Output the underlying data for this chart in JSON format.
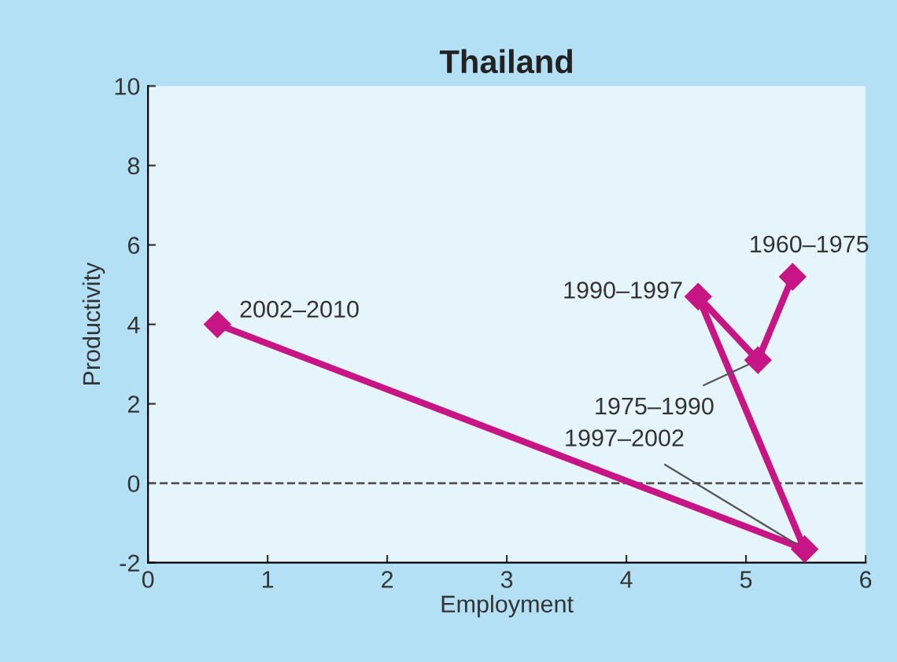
{
  "chart_data": {
    "type": "line",
    "title": "Thailand",
    "xlabel": "Employment",
    "ylabel": "Productivity",
    "series": [
      {
        "color": "#c71585",
        "x": [
          5.39,
          5.1,
          4.6,
          5.49,
          0.58
        ],
        "values": [
          5.2,
          3.1,
          4.7,
          -1.66,
          4.0
        ]
      }
    ],
    "marker": "diamond",
    "line_style": "solid",
    "grid": false,
    "legend": false,
    "xlim": [
      0,
      6
    ],
    "xticks": [
      0,
      1,
      2,
      3,
      4,
      5,
      6
    ],
    "ylim": [
      -2,
      10
    ],
    "yticks": [
      -2,
      0,
      2,
      4,
      6,
      8,
      10
    ],
    "ref_lines": [
      {
        "axis": "y",
        "value": 0,
        "color": "#555555",
        "line_style": "dashed"
      }
    ],
    "annotations": [
      {
        "text": "1960–1975",
        "x": 5.39,
        "y": 5.2
      },
      {
        "text": "1975–1990",
        "x": 5.1,
        "y": 3.1
      },
      {
        "text": "1990–1997",
        "x": 4.6,
        "y": 4.7
      },
      {
        "text": "1997–2002",
        "x": 5.49,
        "y": -1.66
      },
      {
        "text": "2002–2010",
        "x": 0.58,
        "y": 4.0
      }
    ]
  }
}
